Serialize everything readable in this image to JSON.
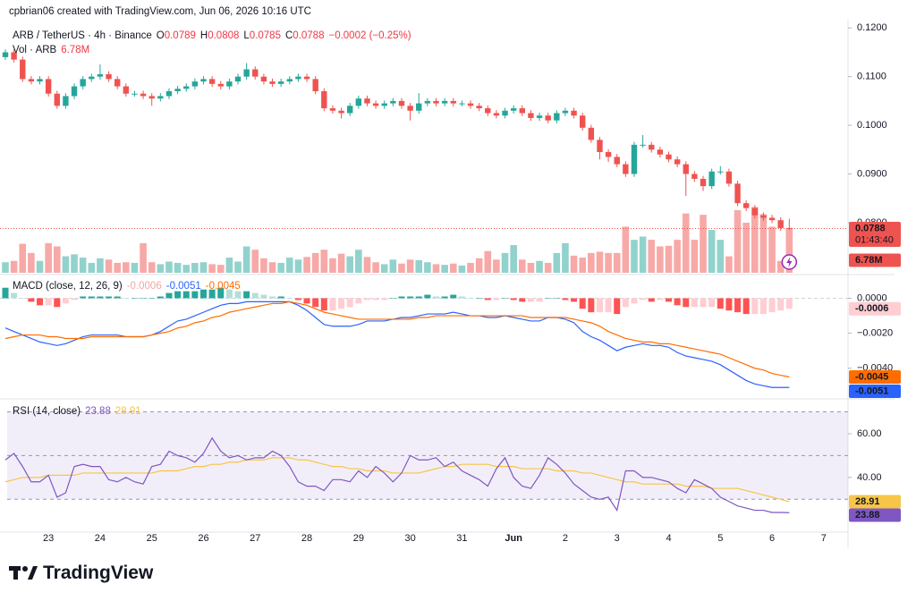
{
  "header": {
    "attribution": "cpbrian06 created with TradingView.com, Jun 06, 2026 10:16 UTC"
  },
  "footer": {
    "brand": "TradingView"
  },
  "chart_data": [
    {
      "type": "candlestick",
      "title": "ARB / TetherUS · 4h · Binance",
      "ohlc_keys": [
        "O",
        "H",
        "L",
        "C"
      ],
      "change_label": "−0.0002 (−0.25%)",
      "countdown": "01:43:40",
      "up_color": "#26a69a",
      "down_color": "#ef5350",
      "categories": [
        null,
        null,
        null,
        null,
        null,
        "23",
        null,
        null,
        null,
        null,
        null,
        "24",
        null,
        null,
        null,
        null,
        null,
        "25",
        null,
        null,
        null,
        null,
        null,
        "26",
        null,
        null,
        null,
        null,
        null,
        "27",
        null,
        null,
        null,
        null,
        null,
        "28",
        null,
        null,
        null,
        null,
        null,
        "29",
        null,
        null,
        null,
        null,
        null,
        "30",
        null,
        null,
        null,
        null,
        null,
        "31",
        null,
        null,
        null,
        null,
        null,
        "Jun",
        null,
        null,
        null,
        null,
        null,
        "2",
        null,
        null,
        null,
        null,
        null,
        "3",
        null,
        null,
        null,
        null,
        null,
        "4",
        null,
        null,
        null,
        null,
        null,
        "5",
        null,
        null,
        null,
        null,
        null,
        "6",
        null,
        null
      ],
      "x_extra_label": "7",
      "open": [
        0.114,
        0.115,
        0.1135,
        0.1095,
        0.109,
        0.1095,
        0.1065,
        0.104,
        0.106,
        0.108,
        0.1095,
        0.11,
        0.1105,
        0.1095,
        0.108,
        0.1065,
        0.1065,
        0.106,
        0.1055,
        0.106,
        0.107,
        0.1075,
        0.108,
        0.109,
        0.1095,
        0.1085,
        0.108,
        0.109,
        0.11,
        0.1115,
        0.11,
        0.109,
        0.1085,
        0.109,
        0.1095,
        0.11,
        0.1095,
        0.107,
        0.1035,
        0.103,
        0.1025,
        0.104,
        0.1055,
        0.1045,
        0.104,
        0.1045,
        0.105,
        0.104,
        0.103,
        0.1045,
        0.105,
        0.1045,
        0.105,
        0.1045,
        0.1045,
        0.104,
        0.1035,
        0.1025,
        0.102,
        0.103,
        0.1035,
        0.1025,
        0.1015,
        0.102,
        0.101,
        0.1025,
        0.103,
        0.102,
        0.0995,
        0.097,
        0.0945,
        0.0935,
        0.092,
        0.09,
        0.096,
        0.096,
        0.095,
        0.094,
        0.093,
        0.092,
        0.09,
        0.089,
        0.0875,
        0.0905,
        0.0905,
        0.088,
        0.084,
        0.083,
        0.0815,
        0.081,
        0.0805,
        0.0789
      ],
      "high": [
        0.1156,
        0.1156,
        0.1141,
        0.1101,
        0.1101,
        0.1101,
        0.1071,
        0.1066,
        0.1086,
        0.1101,
        0.1106,
        0.1125,
        0.1111,
        0.1101,
        0.1086,
        0.1071,
        0.1071,
        0.1066,
        0.1066,
        0.1076,
        0.1081,
        0.1086,
        0.1096,
        0.1101,
        0.1101,
        0.1091,
        0.1096,
        0.1106,
        0.1128,
        0.1121,
        0.1106,
        0.1096,
        0.1096,
        0.1101,
        0.1106,
        0.1106,
        0.1101,
        0.1076,
        0.1041,
        0.1036,
        0.1046,
        0.1061,
        0.1061,
        0.1051,
        0.1051,
        0.1056,
        0.1056,
        0.1046,
        0.1066,
        0.1056,
        0.1056,
        0.1056,
        0.1056,
        0.1051,
        0.1051,
        0.1046,
        0.1041,
        0.1031,
        0.1036,
        0.1041,
        0.1041,
        0.1031,
        0.1026,
        0.1026,
        0.1031,
        0.1036,
        0.1036,
        0.1026,
        0.1001,
        0.0976,
        0.0951,
        0.0941,
        0.0926,
        0.0966,
        0.098,
        0.0966,
        0.0956,
        0.0946,
        0.0936,
        0.0926,
        0.0906,
        0.0896,
        0.0911,
        0.0916,
        0.0911,
        0.0886,
        0.0846,
        0.0836,
        0.0821,
        0.0816,
        0.0811,
        0.0808
      ],
      "low": [
        0.1134,
        0.1129,
        0.1089,
        0.1084,
        0.1084,
        0.1059,
        0.1034,
        0.1034,
        0.1054,
        0.1074,
        0.1089,
        0.1094,
        0.1089,
        0.1074,
        0.1059,
        0.1059,
        0.1054,
        0.104,
        0.1049,
        0.1054,
        0.1064,
        0.1069,
        0.1074,
        0.1084,
        0.1079,
        0.1074,
        0.1074,
        0.1084,
        0.1094,
        0.1094,
        0.1084,
        0.1079,
        0.1079,
        0.1084,
        0.1089,
        0.1089,
        0.1064,
        0.1029,
        0.1024,
        0.1014,
        0.1019,
        0.1034,
        0.1039,
        0.1034,
        0.1034,
        0.1039,
        0.1034,
        0.101,
        0.1024,
        0.1039,
        0.1039,
        0.1039,
        0.1039,
        0.1039,
        0.1034,
        0.1029,
        0.1019,
        0.1014,
        0.1014,
        0.1024,
        0.1019,
        0.1009,
        0.1009,
        0.1004,
        0.1004,
        0.1019,
        0.1014,
        0.0989,
        0.0964,
        0.093,
        0.0925,
        0.0914,
        0.0894,
        0.0894,
        0.0954,
        0.0944,
        0.0934,
        0.0924,
        0.0914,
        0.0855,
        0.0884,
        0.0865,
        0.0869,
        0.0899,
        0.0874,
        0.0834,
        0.0824,
        0.0809,
        0.0804,
        0.0799,
        0.0783,
        0.0785
      ],
      "close": [
        0.115,
        0.1135,
        0.1095,
        0.109,
        0.1095,
        0.1065,
        0.104,
        0.106,
        0.108,
        0.1095,
        0.11,
        0.1105,
        0.1095,
        0.108,
        0.1065,
        0.1065,
        0.106,
        0.1055,
        0.106,
        0.107,
        0.1075,
        0.108,
        0.109,
        0.1095,
        0.1085,
        0.108,
        0.109,
        0.11,
        0.1115,
        0.11,
        0.109,
        0.1085,
        0.109,
        0.1095,
        0.11,
        0.1095,
        0.107,
        0.1035,
        0.103,
        0.1025,
        0.104,
        0.1055,
        0.1045,
        0.104,
        0.1045,
        0.105,
        0.104,
        0.103,
        0.1045,
        0.105,
        0.1045,
        0.105,
        0.1045,
        0.1045,
        0.104,
        0.1035,
        0.1025,
        0.102,
        0.103,
        0.1035,
        0.1025,
        0.1015,
        0.102,
        0.101,
        0.1025,
        0.103,
        0.102,
        0.0995,
        0.097,
        0.0945,
        0.0935,
        0.092,
        0.09,
        0.096,
        0.096,
        0.095,
        0.094,
        0.093,
        0.092,
        0.09,
        0.089,
        0.0875,
        0.0905,
        0.0905,
        0.088,
        0.084,
        0.083,
        0.0815,
        0.081,
        0.0805,
        0.0789,
        0.0788
      ],
      "ylim": [
        0.0697,
        0.1217
      ],
      "yticks": [
        {
          "value": 0.12,
          "label": "0.1200"
        },
        {
          "value": 0.11,
          "label": "0.1100"
        },
        {
          "value": 0.1,
          "label": "0.1000"
        },
        {
          "value": 0.09,
          "label": "0.0900"
        },
        {
          "value": 0.08,
          "label": "0.0800"
        }
      ]
    },
    {
      "type": "bar",
      "title": "Vol · ARB",
      "last_value_label": "6.78M",
      "values": [
        1.6,
        1.8,
        4.4,
        3.0,
        1.8,
        4.5,
        4.0,
        2.5,
        2.8,
        2.3,
        1.5,
        2.2,
        2.0,
        1.5,
        1.6,
        1.5,
        4.5,
        1.6,
        1.3,
        1.7,
        1.5,
        1.2,
        1.5,
        1.6,
        1.3,
        1.2,
        2.3,
        1.7,
        4.0,
        3.5,
        2.2,
        1.6,
        1.5,
        2.3,
        2.0,
        2.4,
        3.0,
        3.5,
        2.2,
        2.9,
        2.5,
        3.5,
        2.4,
        1.6,
        1.3,
        2.0,
        1.4,
        2.0,
        1.9,
        1.6,
        1.3,
        1.2,
        1.4,
        1.1,
        1.5,
        2.2,
        3.3,
        2.0,
        3.0,
        4.2,
        2.0,
        1.5,
        1.8,
        1.5,
        3.0,
        4.5,
        2.6,
        2.3,
        3.0,
        3.2,
        3.0,
        3.0,
        7.0,
        5.0,
        5.5,
        5.0,
        4.0,
        4.1,
        5.0,
        9.0,
        5.0,
        8.8,
        6.5,
        5.0,
        2.5,
        9.5,
        7.6,
        10.0,
        8.9,
        7.0,
        1.8,
        6.78
      ],
      "ylim": [
        0,
        30
      ]
    },
    {
      "type": "macd",
      "title": "MACD (close, 12, 26, 9)",
      "hist_colors": [
        "#26a69a",
        "#b2dfdb",
        "#ffcdd2",
        "#ff5252"
      ],
      "series": [
        {
          "color": "#f4a6a6",
          "values": [
            0.0006,
            0.0003,
            0,
            -0.0002,
            -0.0004,
            -0.0004,
            -0.0005,
            -0.0003,
            -0.0001,
            0.0001,
            0.0001,
            0.0001,
            0.0001,
            0.0001,
            0,
            0,
            0,
            0,
            0.0001,
            0.0003,
            0.0004,
            0.0004,
            0.0004,
            0.0005,
            0.0005,
            0.0006,
            0.0005,
            0.0004,
            0.0004,
            0.0003,
            0.0002,
            0.0001,
            0.0001,
            0,
            -0.0001,
            -0.0003,
            -0.0005,
            -0.0007,
            -0.0007,
            -0.0006,
            -0.0005,
            -0.0003,
            -0.0001,
            -0.0001,
            -0.0001,
            0,
            0.0001,
            0.0001,
            0.0001,
            0.0002,
            0.0001,
            0.0001,
            0.0002,
            0.0001,
            0,
            0,
            -0.0001,
            -0.0001,
            0,
            -0.0001,
            -0.0002,
            -0.0002,
            -0.0002,
            0,
            0,
            -0.0001,
            -0.0002,
            -0.0006,
            -0.0008,
            -0.0008,
            -0.0008,
            -0.0009,
            -0.0005,
            -0.0003,
            -0.0001,
            -0.0002,
            -0.0001,
            -0.0002,
            -0.0004,
            -0.0005,
            -0.0005,
            -0.0005,
            -0.0005,
            -0.0006,
            -0.0007,
            -0.0008,
            -0.0009,
            -0.0009,
            -0.0009,
            -0.0008,
            -0.0007,
            -0.0006
          ]
        },
        {
          "color": "#2962ff",
          "values": [
            -0.0017,
            -0.0019,
            -0.0021,
            -0.0023,
            -0.0025,
            -0.0026,
            -0.0027,
            -0.0026,
            -0.0024,
            -0.0022,
            -0.0021,
            -0.0021,
            -0.0021,
            -0.0021,
            -0.0022,
            -0.0022,
            -0.0022,
            -0.0021,
            -0.0019,
            -0.0016,
            -0.0013,
            -0.0012,
            -0.001,
            -0.0008,
            -0.0006,
            -0.0004,
            -0.0003,
            -0.0003,
            -0.0002,
            -0.0002,
            -0.0002,
            -0.0002,
            -0.0002,
            -0.0002,
            -0.0004,
            -0.0007,
            -0.0011,
            -0.0015,
            -0.0016,
            -0.0016,
            -0.0016,
            -0.0015,
            -0.0013,
            -0.0013,
            -0.0013,
            -0.0012,
            -0.0011,
            -0.0011,
            -0.001,
            -0.0009,
            -0.0009,
            -0.0009,
            -0.0008,
            -0.0009,
            -0.001,
            -0.001,
            -0.0011,
            -0.0011,
            -0.001,
            -0.0011,
            -0.0012,
            -0.0013,
            -0.0013,
            -0.0011,
            -0.0011,
            -0.0012,
            -0.0014,
            -0.0019,
            -0.0022,
            -0.0024,
            -0.0027,
            -0.003,
            -0.0028,
            -0.0027,
            -0.0026,
            -0.0027,
            -0.0027,
            -0.0028,
            -0.0031,
            -0.0033,
            -0.0034,
            -0.0035,
            -0.0036,
            -0.0038,
            -0.0041,
            -0.0044,
            -0.0047,
            -0.0049,
            -0.005,
            -0.0051,
            -0.0051,
            -0.0051
          ]
        },
        {
          "color": "#ff6d00",
          "values": [
            -0.0023,
            -0.0022,
            -0.0021,
            -0.0021,
            -0.0021,
            -0.0022,
            -0.0022,
            -0.0023,
            -0.0023,
            -0.0023,
            -0.0022,
            -0.0022,
            -0.0022,
            -0.0022,
            -0.0022,
            -0.0022,
            -0.0022,
            -0.0021,
            -0.002,
            -0.0019,
            -0.0017,
            -0.0016,
            -0.0014,
            -0.0013,
            -0.0011,
            -0.001,
            -0.0008,
            -0.0007,
            -0.0006,
            -0.0005,
            -0.0004,
            -0.0003,
            -0.0003,
            -0.0002,
            -0.0003,
            -0.0004,
            -0.0006,
            -0.0008,
            -0.0009,
            -0.001,
            -0.0011,
            -0.0012,
            -0.0012,
            -0.0012,
            -0.0012,
            -0.0012,
            -0.0012,
            -0.0012,
            -0.0011,
            -0.0011,
            -0.001,
            -0.001,
            -0.001,
            -0.001,
            -0.001,
            -0.001,
            -0.001,
            -0.001,
            -0.001,
            -0.001,
            -0.001,
            -0.0011,
            -0.0011,
            -0.0011,
            -0.0011,
            -0.0011,
            -0.0012,
            -0.0013,
            -0.0014,
            -0.0016,
            -0.0019,
            -0.0021,
            -0.0023,
            -0.0024,
            -0.0025,
            -0.0025,
            -0.0026,
            -0.0026,
            -0.0027,
            -0.0028,
            -0.0029,
            -0.003,
            -0.0031,
            -0.0032,
            -0.0034,
            -0.0036,
            -0.0038,
            -0.004,
            -0.0041,
            -0.0043,
            -0.0044,
            -0.0045
          ]
        }
      ],
      "ylim": [
        -0.0057,
        0.0012
      ],
      "yticks": [
        {
          "value": 0,
          "label": "0.0000"
        },
        {
          "value": -0.002,
          "label": "−0.0020"
        },
        {
          "value": -0.004,
          "label": "−0.0040"
        }
      ]
    },
    {
      "type": "rsi",
      "title": "RSI (14, close)",
      "series": [
        {
          "color": "#7e57c2",
          "values": [
            48,
            51,
            45,
            38,
            38,
            41,
            31,
            33,
            45,
            46,
            45,
            45,
            39,
            38,
            40,
            38,
            37,
            45,
            46,
            52,
            50,
            49,
            47,
            51,
            58,
            52,
            49,
            50,
            48,
            49,
            49,
            52,
            50,
            45,
            38,
            36,
            36,
            34,
            39,
            39,
            38,
            43,
            40,
            45,
            42,
            38,
            42,
            50,
            48,
            48,
            49,
            45,
            47,
            43,
            41,
            39,
            36,
            44,
            49,
            40,
            36,
            35,
            41,
            49,
            46,
            42,
            37,
            34,
            31,
            30,
            31,
            25,
            43,
            43,
            40,
            40,
            39,
            38,
            35,
            33,
            39,
            37,
            35,
            31,
            29,
            27,
            26,
            25,
            25,
            24,
            24,
            23.88
          ]
        },
        {
          "color": "#f7c548",
          "values": [
            38,
            39,
            40,
            40,
            40,
            41,
            41,
            41,
            41,
            42,
            42,
            42,
            42,
            42,
            42,
            42,
            42,
            42,
            43,
            43,
            43,
            44,
            45,
            45,
            46,
            46,
            47,
            47,
            48,
            48,
            48,
            49,
            49,
            49,
            48,
            48,
            47,
            46,
            45,
            45,
            44,
            44,
            43,
            43,
            43,
            42,
            42,
            42,
            42,
            43,
            44,
            45,
            45,
            46,
            46,
            46,
            46,
            45,
            45,
            45,
            44,
            44,
            44,
            44,
            43,
            43,
            43,
            42,
            42,
            41,
            40,
            39,
            38,
            38,
            37,
            37,
            37,
            37,
            37,
            36,
            36,
            36,
            35,
            35,
            35,
            35,
            34,
            33,
            32,
            31,
            30,
            28.91
          ]
        }
      ],
      "levels": [
        70,
        50,
        30
      ],
      "ylim": [
        15,
        75.1
      ],
      "yticks": [
        {
          "value": 60,
          "label": "60.00"
        },
        {
          "value": 40,
          "label": "40.00"
        }
      ]
    }
  ]
}
